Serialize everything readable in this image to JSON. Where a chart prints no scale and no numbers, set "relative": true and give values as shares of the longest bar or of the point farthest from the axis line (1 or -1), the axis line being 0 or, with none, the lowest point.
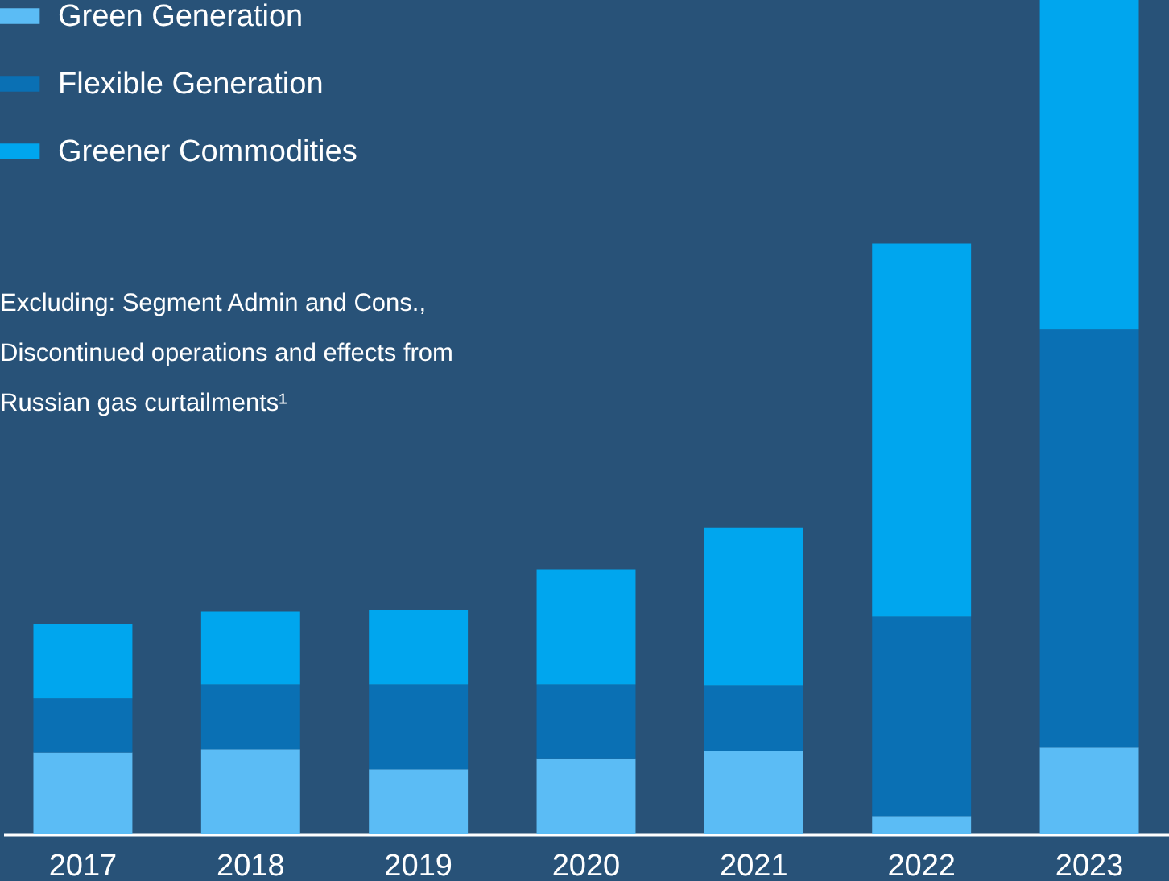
{
  "chart_data": {
    "type": "bar",
    "stacked": true,
    "relative": true,
    "legend": "top left",
    "categories": [
      "2017",
      "2018",
      "2019",
      "2020",
      "2021",
      "2022",
      "2023"
    ],
    "series": [
      {
        "name": "Green Generation",
        "color": "#5bbcf5",
        "values": [
          0.098,
          0.102,
          0.078,
          0.091,
          0.1,
          0.022,
          0.104
        ]
      },
      {
        "name": "Flexible Generation",
        "color": "#0a70b4",
        "values": [
          0.065,
          0.078,
          0.102,
          0.089,
          0.078,
          0.239,
          0.501
        ]
      },
      {
        "name": "Greener Commodities",
        "color": "#00a6ee",
        "values": [
          0.089,
          0.087,
          0.089,
          0.137,
          0.189,
          0.447,
          0.395
        ]
      }
    ],
    "annotations": [
      "Excluding: Segment Admin and Cons., Discontinued operations and effects from Russian gas curtailments¹"
    ]
  }
}
